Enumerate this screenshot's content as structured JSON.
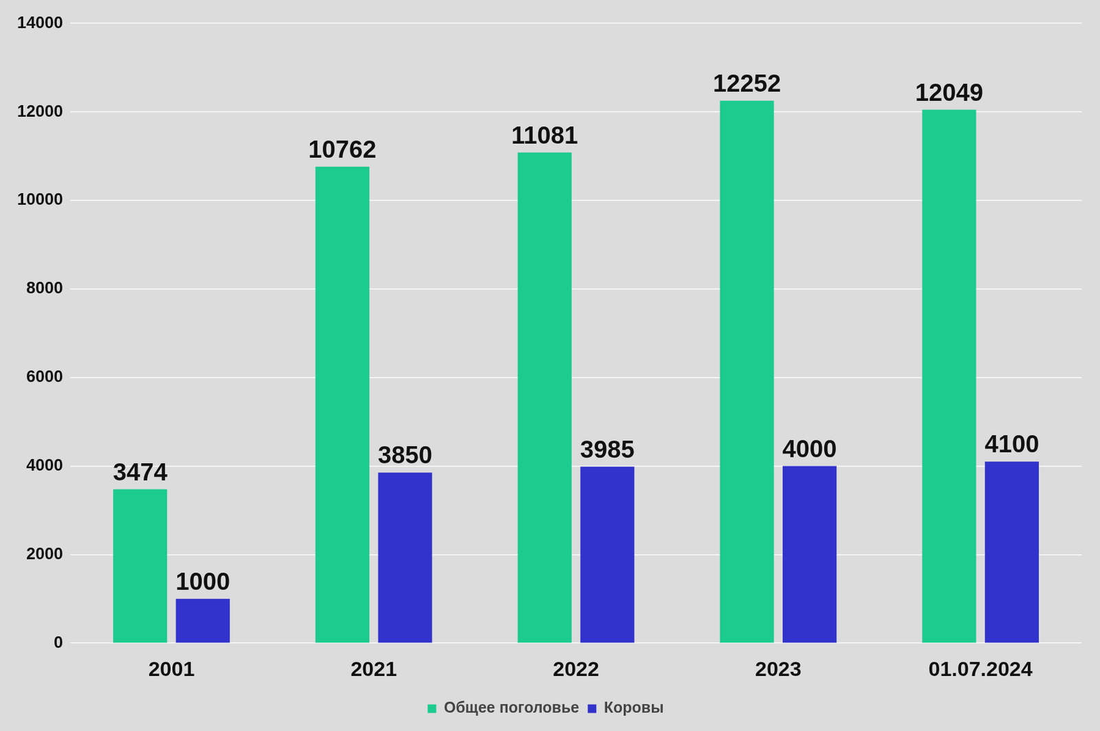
{
  "chart_data": {
    "type": "bar",
    "categories": [
      "2001",
      "2021",
      "2022",
      "2023",
      "01.07.2024"
    ],
    "series": [
      {
        "name": "Общее поголовье",
        "color": "#1ccb8e",
        "values": [
          3474,
          10762,
          11081,
          12252,
          12049
        ]
      },
      {
        "name": "Коровы",
        "color": "#3232cc",
        "values": [
          1000,
          3850,
          3985,
          4000,
          4100
        ]
      }
    ],
    "ylim": [
      0,
      14000
    ],
    "yticks": [
      0,
      2000,
      4000,
      6000,
      8000,
      10000,
      12000,
      14000
    ],
    "grid": true,
    "legend": "bottom",
    "data_labels": true
  }
}
